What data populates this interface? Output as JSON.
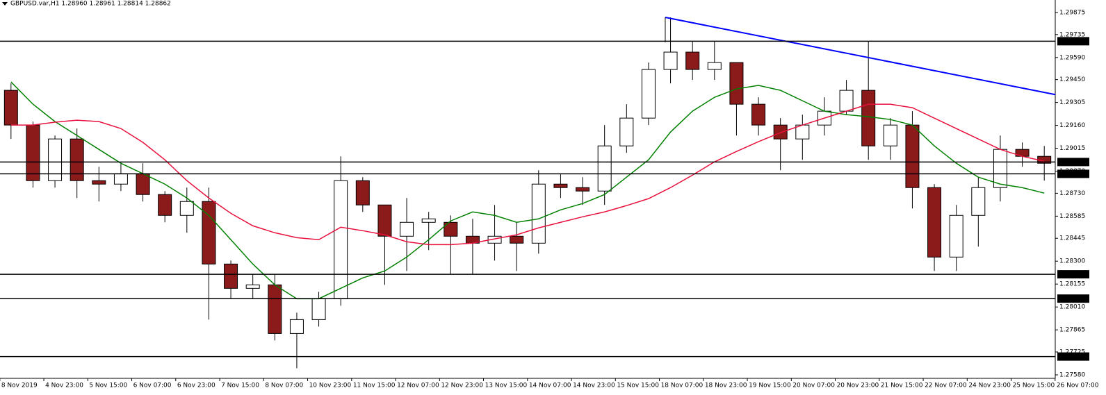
{
  "chart_data": {
    "type": "candlestick",
    "title": "GBPUSD.var,H1  1.28960 1.28961 1.28814 1.28862",
    "x_tick_labels": [
      "8 Nov 2019",
      "4 Nov 23:00",
      "5 Nov 15:00",
      "6 Nov 07:00",
      "6 Nov 23:00",
      "7 Nov 15:00",
      "8 Nov 07:00",
      "10 Nov 23:00",
      "11 Nov 15:00",
      "12 Nov 07:00",
      "12 Nov 23:00",
      "13 Nov 15:00",
      "14 Nov 07:00",
      "14 Nov 23:00",
      "15 Nov 15:00",
      "18 Nov 07:00",
      "18 Nov 23:00",
      "19 Nov 15:00",
      "20 Nov 07:00",
      "20 Nov 23:00",
      "21 Nov 15:00",
      "22 Nov 07:00",
      "24 Nov 23:00",
      "25 Nov 15:00",
      "26 Nov 07:00"
    ],
    "ohlc": {
      "open": [
        1.29382,
        1.29162,
        1.2881,
        1.29074,
        1.2881,
        1.28788,
        1.28854,
        1.28722,
        1.2859,
        1.28678,
        1.28282,
        1.28128,
        1.2815,
        1.27842,
        1.2793,
        1.28062,
        1.2881,
        1.28656,
        1.28458,
        1.28546,
        1.28546,
        1.28458,
        1.28414,
        1.28458,
        1.28414,
        1.28788,
        1.28766,
        1.28744,
        1.2903,
        1.29206,
        1.29514,
        1.29624,
        1.29514,
        1.29558,
        1.29294,
        1.29162,
        1.29074,
        1.29162,
        1.2925,
        1.29382,
        1.2903,
        1.29162,
        1.28766,
        1.28326,
        1.2859,
        1.28766,
        1.29008,
        1.28964
      ],
      "high": [
        1.29426,
        1.29184,
        1.29096,
        1.2914,
        1.28898,
        1.2892,
        1.2892,
        1.28744,
        1.28766,
        1.28766,
        1.28304,
        1.28216,
        1.28216,
        1.27974,
        1.28106,
        1.28964,
        1.28832,
        1.28656,
        1.287,
        1.28612,
        1.2859,
        1.28568,
        1.28656,
        1.28546,
        1.28876,
        1.28854,
        1.28832,
        1.29162,
        1.29294,
        1.29558,
        1.29844,
        1.2969,
        1.2969,
        1.29558,
        1.29338,
        1.29206,
        1.29228,
        1.29338,
        1.29448,
        1.2969,
        1.29206,
        1.2925,
        1.28788,
        1.28656,
        1.28832,
        1.29096,
        1.29052,
        1.2903
      ],
      "low": [
        1.29074,
        1.28766,
        1.28766,
        1.287,
        1.28678,
        1.28744,
        1.28678,
        1.28546,
        1.2848,
        1.2793,
        1.28062,
        1.28062,
        1.27798,
        1.27622,
        1.27886,
        1.28018,
        1.28612,
        1.2815,
        1.28238,
        1.2837,
        1.28216,
        1.28216,
        1.28304,
        1.28238,
        1.28348,
        1.287,
        1.28656,
        1.28656,
        1.28986,
        1.29162,
        1.29426,
        1.29448,
        1.29448,
        1.29096,
        1.29096,
        1.28876,
        1.28942,
        1.29096,
        1.29228,
        1.28942,
        1.28942,
        1.28634,
        1.28238,
        1.28238,
        1.28392,
        1.28678,
        1.28898,
        1.2881
      ],
      "close": [
        1.29162,
        1.2881,
        1.29074,
        1.2881,
        1.28788,
        1.28854,
        1.28722,
        1.2859,
        1.28678,
        1.28282,
        1.28128,
        1.2815,
        1.27842,
        1.2793,
        1.28062,
        1.2881,
        1.28656,
        1.28458,
        1.28546,
        1.28568,
        1.28458,
        1.28414,
        1.28458,
        1.28414,
        1.28788,
        1.28766,
        1.28744,
        1.2903,
        1.29206,
        1.29514,
        1.29624,
        1.29514,
        1.29558,
        1.29294,
        1.29162,
        1.29074,
        1.29162,
        1.2925,
        1.29382,
        1.2903,
        1.29162,
        1.28766,
        1.28326,
        1.2859,
        1.28766,
        1.29008,
        1.28964,
        1.2892
      ]
    },
    "up_color": "#ffffff",
    "down_color": "#8b1a1a",
    "lines": [
      {
        "color": "#008000",
        "values": [
          1.29435,
          1.29294,
          1.29184,
          1.29096,
          1.29008,
          1.2892,
          1.28854,
          1.28788,
          1.287,
          1.2859,
          1.28436,
          1.28282,
          1.2815,
          1.28062,
          1.28062,
          1.28128,
          1.28194,
          1.28238,
          1.28326,
          1.28436,
          1.28555,
          1.28612,
          1.2859,
          1.28546,
          1.28568,
          1.28625,
          1.28665,
          1.28722,
          1.28832,
          1.28942,
          1.29118,
          1.2925,
          1.29338,
          1.29391,
          1.29413,
          1.29382,
          1.29316,
          1.2925,
          1.29228,
          1.29215,
          1.29197,
          1.29162,
          1.2903,
          1.2892,
          1.28832,
          1.28788,
          1.28766,
          1.28731
        ]
      },
      {
        "color": "#e8103c",
        "values": [
          1.29162,
          1.29162,
          1.2918,
          1.29193,
          1.29184,
          1.2914,
          1.29052,
          1.28942,
          1.2881,
          1.287,
          1.28603,
          1.28524,
          1.2848,
          1.28449,
          1.28436,
          1.28515,
          1.28493,
          1.28467,
          1.28423,
          1.28405,
          1.28405,
          1.28414,
          1.28441,
          1.28467,
          1.28511,
          1.28546,
          1.28581,
          1.28612,
          1.28652,
          1.28696,
          1.28766,
          1.28845,
          1.28929,
          1.28995,
          1.29057,
          1.29114,
          1.29162,
          1.29206,
          1.2925,
          1.29294,
          1.29294,
          1.29272,
          1.29206,
          1.2914,
          1.29074,
          1.29008,
          1.28964,
          1.28933
        ]
      }
    ],
    "hlines": [
      1.29693,
      1.28928,
      1.28853,
      1.28217,
      1.28063,
      1.27696
    ],
    "trendline": {
      "x": [
        29.76,
        47.5
      ],
      "y": [
        1.29844,
        1.29355
      ],
      "color": "#0000ff"
    },
    "ylim": [
      1.27558,
      1.29954
    ],
    "yticks": [
      1.29875,
      1.29735,
      {
        "value": 1.2959,
        "label": "1.29590"
      },
      {
        "value": 1.2945,
        "label": "1.29450"
      },
      1.29305,
      {
        "value": 1.2916,
        "label": "1.29160"
      },
      1.29015,
      {
        "value": 1.2887,
        "label": "1.28870"
      },
      {
        "value": 1.2873,
        "label": "1.28730"
      },
      1.28585,
      1.28445,
      {
        "value": 1.283,
        "label": "1.28300"
      },
      1.28155,
      {
        "value": 1.2801,
        "label": "1.28010"
      },
      1.27865,
      1.27725,
      {
        "value": 1.2758,
        "label": "1.27580"
      }
    ]
  }
}
